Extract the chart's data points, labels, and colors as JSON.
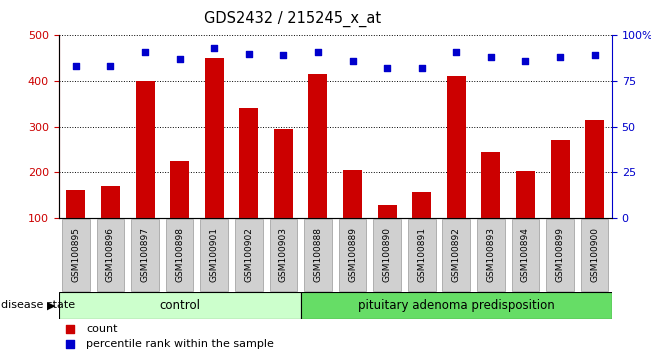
{
  "title": "GDS2432 / 215245_x_at",
  "categories": [
    "GSM100895",
    "GSM100896",
    "GSM100897",
    "GSM100898",
    "GSM100901",
    "GSM100902",
    "GSM100903",
    "GSM100888",
    "GSM100889",
    "GSM100890",
    "GSM100891",
    "GSM100892",
    "GSM100893",
    "GSM100894",
    "GSM100899",
    "GSM100900"
  ],
  "bar_values": [
    160,
    170,
    400,
    225,
    450,
    340,
    295,
    415,
    205,
    128,
    157,
    410,
    245,
    202,
    270,
    315
  ],
  "dot_values": [
    83,
    83,
    91,
    87,
    93,
    90,
    89,
    91,
    86,
    82,
    82,
    91,
    88,
    86,
    88,
    89
  ],
  "ylim_left": [
    100,
    500
  ],
  "ylim_right": [
    0,
    100
  ],
  "yticks_left": [
    100,
    200,
    300,
    400,
    500
  ],
  "yticks_right": [
    0,
    25,
    50,
    75,
    100
  ],
  "ytick_labels_right": [
    "0",
    "25",
    "50",
    "75",
    "100%"
  ],
  "bar_color": "#cc0000",
  "dot_color": "#0000cc",
  "left_axis_color": "#cc0000",
  "right_axis_color": "#0000cc",
  "n_control": 7,
  "n_disease": 9,
  "control_label": "control",
  "disease_label": "pituitary adenoma predisposition",
  "legend_bar_label": "count",
  "legend_dot_label": "percentile rank within the sample",
  "disease_state_label": "disease state",
  "plot_bg_color": "#ffffff",
  "tick_bg_color": "#d0d0d0",
  "tick_border_color": "#999999",
  "group_bar_light_green": "#ccffcc",
  "group_bar_green": "#66dd66",
  "group_bar_border": "#000000"
}
